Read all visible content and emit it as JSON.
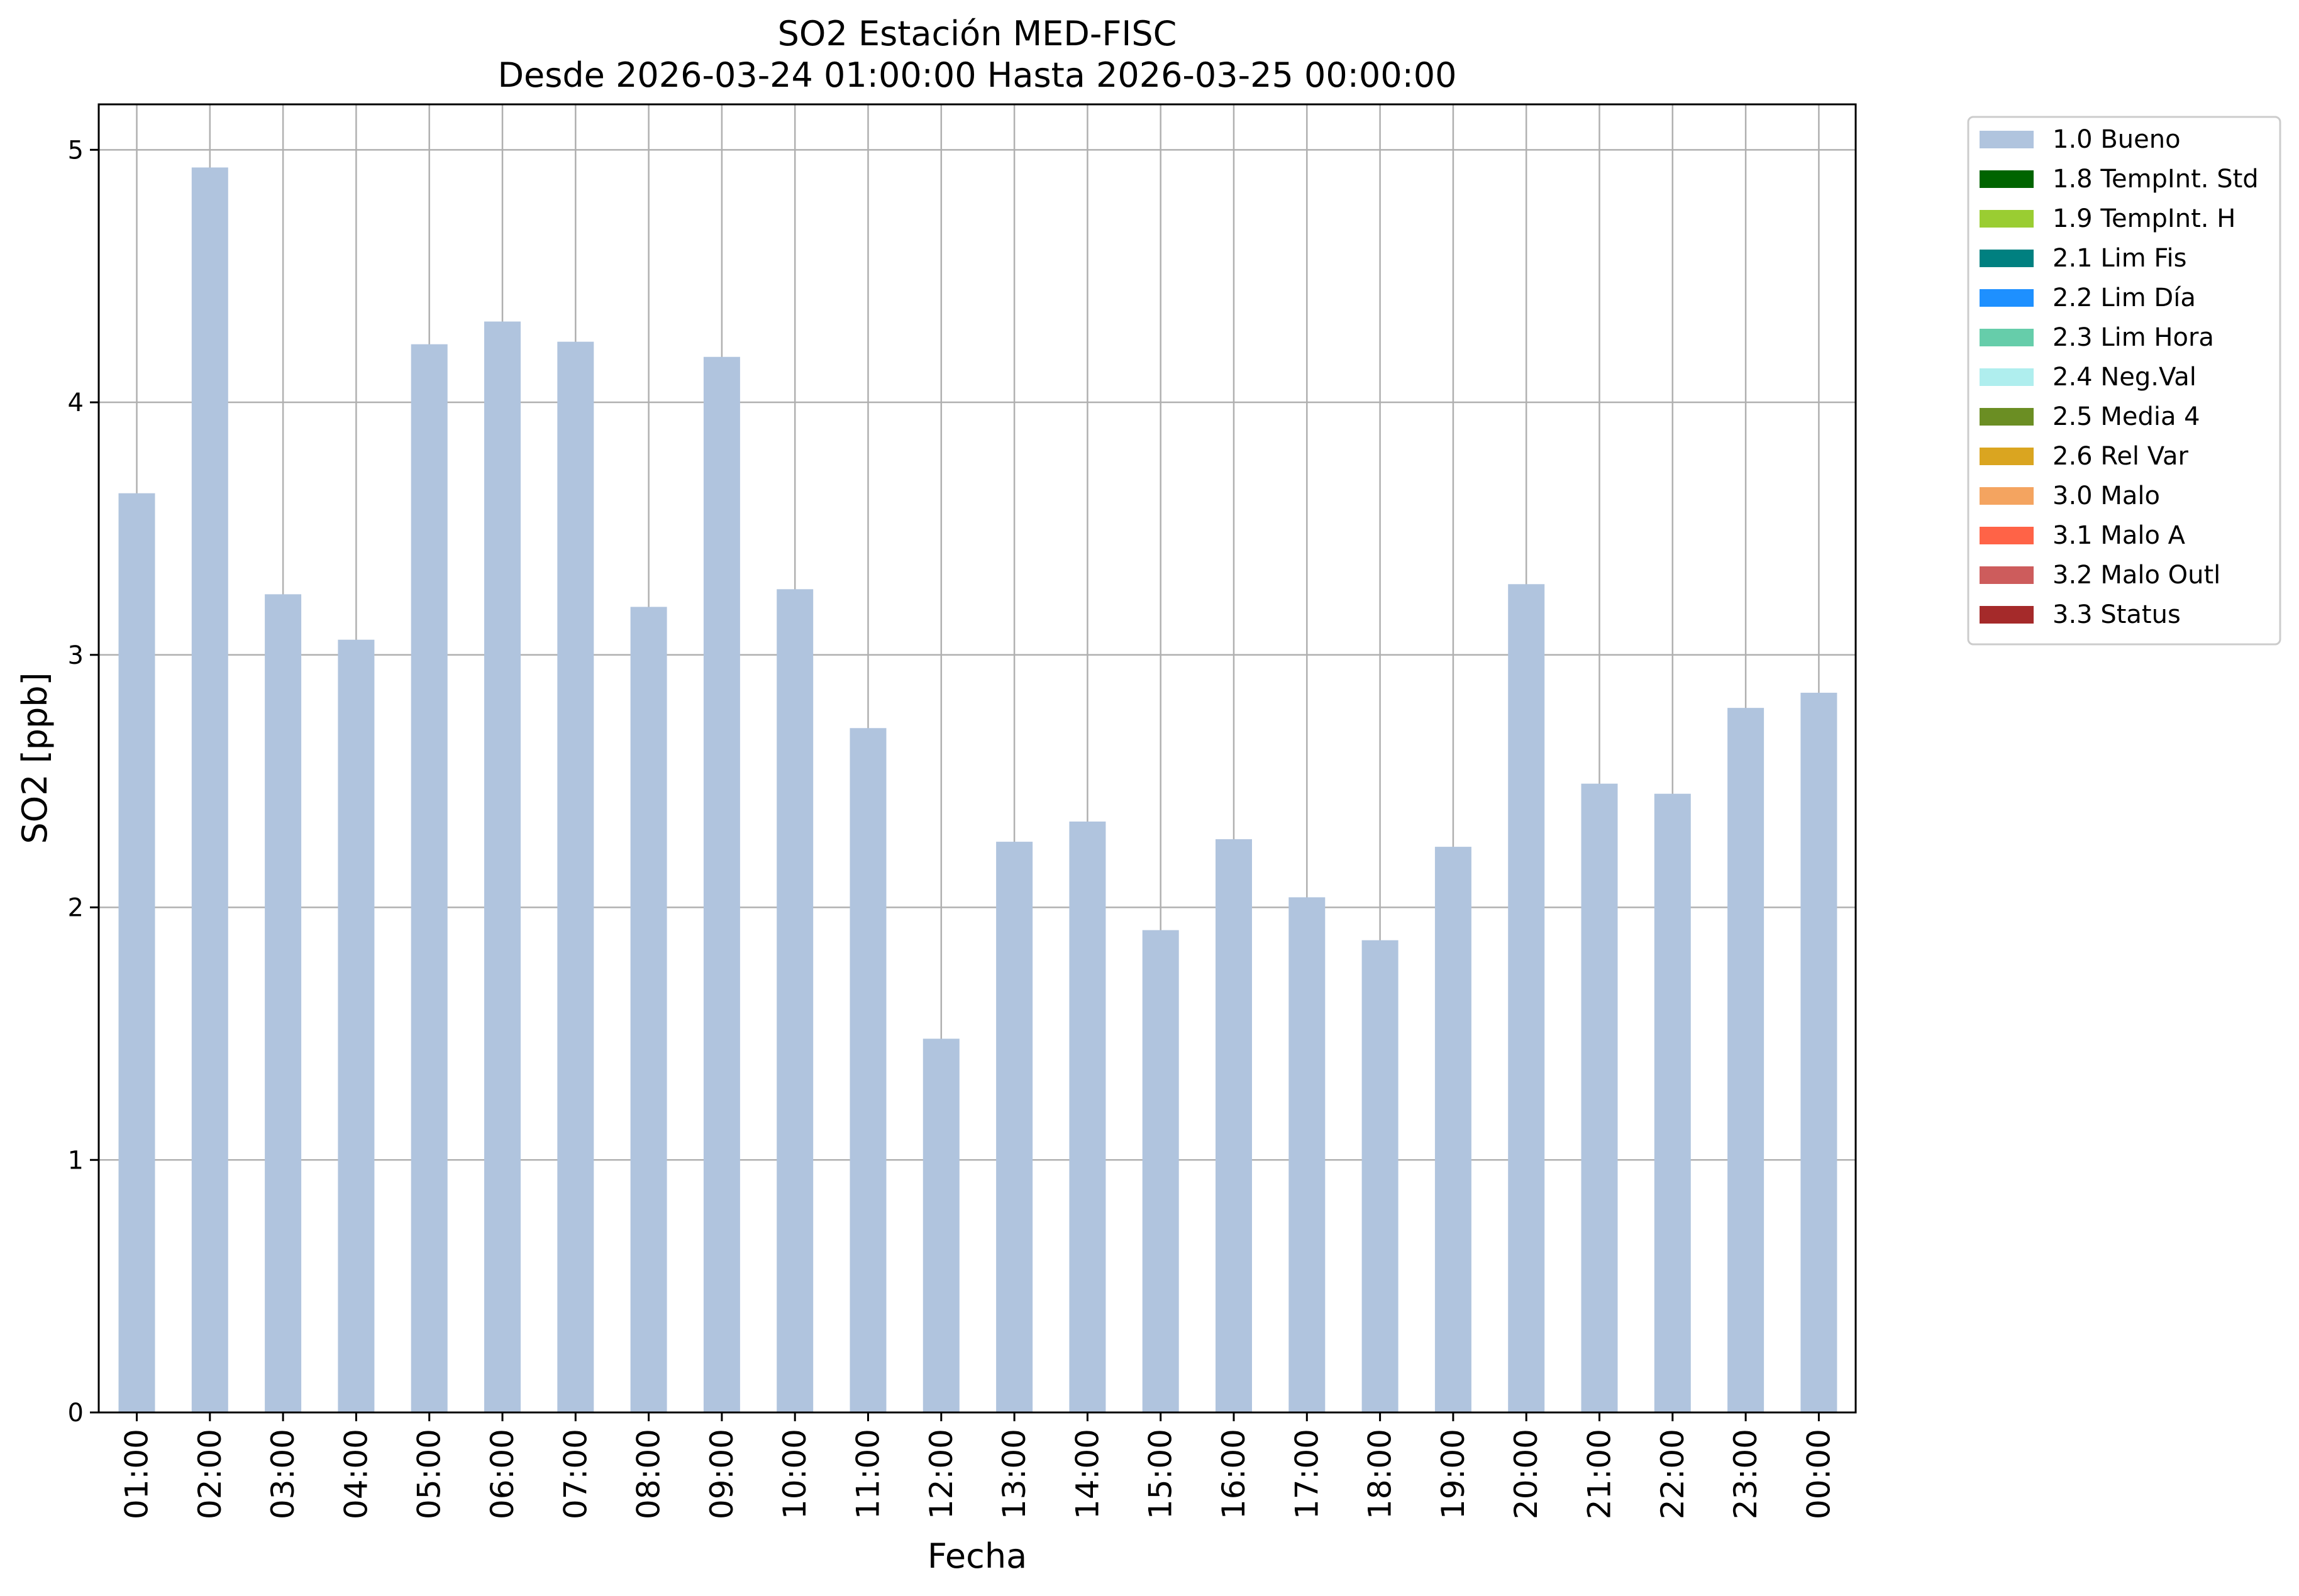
{
  "chart_data": {
    "type": "bar",
    "title": "SO2 Estación MED-FISC",
    "subtitle": "Desde 2026-03-24 01:00:00 Hasta 2026-03-25 00:00:00",
    "xlabel": "Fecha",
    "ylabel": "SO2 [ppb]",
    "ylim": [
      0,
      5.18
    ],
    "yticks": [
      0,
      1,
      2,
      3,
      4,
      5
    ],
    "grid": true,
    "legend_position": "outside-top-right",
    "categories": [
      "01:00",
      "02:00",
      "03:00",
      "04:00",
      "05:00",
      "06:00",
      "07:00",
      "08:00",
      "09:00",
      "10:00",
      "11:00",
      "12:00",
      "13:00",
      "14:00",
      "15:00",
      "16:00",
      "17:00",
      "18:00",
      "19:00",
      "20:00",
      "21:00",
      "22:00",
      "23:00",
      "00:00"
    ],
    "series": [
      {
        "name": "1.0 Bueno",
        "color": "#b0c4de",
        "values": [
          3.64,
          4.93,
          3.24,
          3.06,
          4.23,
          4.32,
          4.24,
          3.19,
          4.18,
          3.26,
          2.71,
          1.48,
          2.26,
          2.34,
          1.91,
          2.27,
          2.04,
          1.87,
          2.24,
          3.28,
          2.49,
          2.45,
          2.79,
          2.85
        ]
      }
    ],
    "legend": [
      {
        "label": "1.0 Bueno",
        "color": "#b0c4de"
      },
      {
        "label": "1.8 TempInt. Std",
        "color": "#006400"
      },
      {
        "label": "1.9 TempInt. H",
        "color": "#9acd32"
      },
      {
        "label": "2.1 Lim Fis",
        "color": "#008080"
      },
      {
        "label": "2.2 Lim Día",
        "color": "#1e90ff"
      },
      {
        "label": "2.3 Lim Hora",
        "color": "#66cdaa"
      },
      {
        "label": "2.4 Neg.Val",
        "color": "#afeeee"
      },
      {
        "label": "2.5 Media 4",
        "color": "#6b8e23"
      },
      {
        "label": "2.6 Rel Var",
        "color": "#daa520"
      },
      {
        "label": "3.0 Malo",
        "color": "#f4a460"
      },
      {
        "label": "3.1 Malo A",
        "color": "#ff6347"
      },
      {
        "label": "3.2 Malo Outl",
        "color": "#cd5c5c"
      },
      {
        "label": "3.3 Status",
        "color": "#a52a2a"
      }
    ]
  }
}
